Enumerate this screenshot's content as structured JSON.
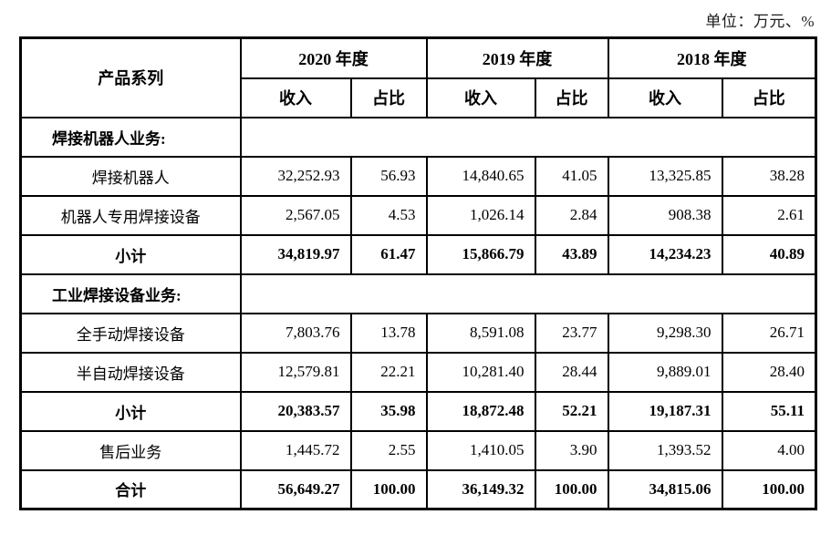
{
  "unit_label": "单位：万元、%",
  "table": {
    "header": {
      "product_series": "产品系列",
      "year_groups": [
        "2020 年度",
        "2019 年度",
        "2018 年度"
      ],
      "sub_columns": [
        "收入",
        "占比"
      ]
    },
    "rows": [
      {
        "type": "section",
        "label": "焊接机器人业务:",
        "values": []
      },
      {
        "type": "data",
        "label": "焊接机器人",
        "values": [
          "32,252.93",
          "56.93",
          "14,840.65",
          "41.05",
          "13,325.85",
          "38.28"
        ]
      },
      {
        "type": "data",
        "label": "机器人专用焊接设备",
        "values": [
          "2,567.05",
          "4.53",
          "1,026.14",
          "2.84",
          "908.38",
          "2.61"
        ]
      },
      {
        "type": "subtotal",
        "label": "小计",
        "values": [
          "34,819.97",
          "61.47",
          "15,866.79",
          "43.89",
          "14,234.23",
          "40.89"
        ]
      },
      {
        "type": "section",
        "label": "工业焊接设备业务:",
        "values": []
      },
      {
        "type": "data",
        "label": "全手动焊接设备",
        "values": [
          "7,803.76",
          "13.78",
          "8,591.08",
          "23.77",
          "9,298.30",
          "26.71"
        ]
      },
      {
        "type": "data",
        "label": "半自动焊接设备",
        "values": [
          "12,579.81",
          "22.21",
          "10,281.40",
          "28.44",
          "9,889.01",
          "28.40"
        ]
      },
      {
        "type": "subtotal",
        "label": "小计",
        "values": [
          "20,383.57",
          "35.98",
          "18,872.48",
          "52.21",
          "19,187.31",
          "55.11"
        ]
      },
      {
        "type": "data",
        "label": "售后业务",
        "values": [
          "1,445.72",
          "2.55",
          "1,410.05",
          "3.90",
          "1,393.52",
          "4.00"
        ]
      },
      {
        "type": "total",
        "label": "合计",
        "values": [
          "56,649.27",
          "100.00",
          "36,149.32",
          "100.00",
          "34,815.06",
          "100.00"
        ]
      }
    ]
  }
}
